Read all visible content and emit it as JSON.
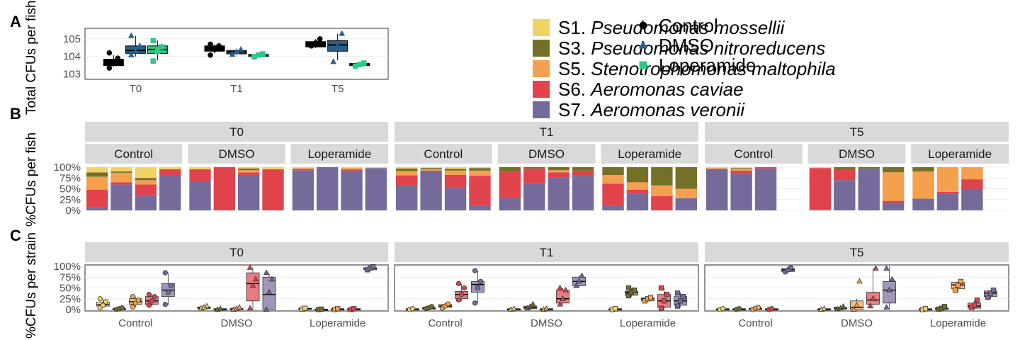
{
  "colors": {
    "S1": "#F0D264",
    "S3": "#747027",
    "S5": "#F4A04E",
    "S6": "#E0434C",
    "S7": "#766A9B",
    "Control": "#000000",
    "DMSO": "#2C5E8C",
    "Loperamide": "#2CC987",
    "strip_bg": "#D9D9D9",
    "grid": "#EBEBEB",
    "panel_border": "#333333"
  },
  "panel_labels": {
    "a": "A",
    "b": "B",
    "c": "C"
  },
  "legend": {
    "strains": [
      {
        "code": "S1.",
        "name": "Pseudomonas mossellii",
        "key": "S1"
      },
      {
        "code": "S3.",
        "name": "Pseudomonas nitroreducens",
        "key": "S3"
      },
      {
        "code": "S5.",
        "name": "Stenotrophomonas maltophila",
        "key": "S5"
      },
      {
        "code": "S6.",
        "name": "Aeromonas caviae",
        "key": "S6"
      },
      {
        "code": "S7.",
        "name": "Aeromonas veronii",
        "key": "S7"
      }
    ],
    "treatments": [
      {
        "label": "Control",
        "shape": "circle"
      },
      {
        "label": "DMSO",
        "shape": "triangle"
      },
      {
        "label": "Loperamide",
        "shape": "square"
      }
    ]
  },
  "chart_data": [
    {
      "id": "A",
      "type": "box",
      "ylabel": "Total CFUs per fish",
      "scale": "log10",
      "yticks": [
        "10^3",
        "10^4",
        "10^5"
      ],
      "categories": [
        "T0",
        "T1",
        "T5"
      ],
      "groups": [
        "Control",
        "DMSO",
        "Loperamide"
      ],
      "series": {
        "T0": {
          "Control": {
            "min": 2500,
            "q1": 3000,
            "median": 5000,
            "q3": 7000,
            "max": 12000,
            "points": [
              2200,
              4500,
              8000,
              16000
            ]
          },
          "DMSO": {
            "min": 10000,
            "q1": 15000,
            "median": 22000,
            "q3": 40000,
            "max": 150000,
            "points": [
              12000,
              20000,
              40000,
              150000
            ]
          },
          "Loperamide": {
            "min": 6000,
            "q1": 15000,
            "median": 25000,
            "q3": 40000,
            "max": 80000,
            "points": [
              5500,
              20000,
              35000,
              80000
            ]
          }
        },
        "T1": {
          "Control": {
            "min": 15000,
            "q1": 20000,
            "median": 30000,
            "q3": 40000,
            "max": 50000,
            "points": [
              12000,
              25000,
              40000,
              50000
            ]
          },
          "DMSO": {
            "min": 12000,
            "q1": 14000,
            "median": 18000,
            "q3": 22000,
            "max": 28000,
            "points": [
              13000,
              18000,
              25000
            ]
          },
          "Loperamide": {
            "min": 9000,
            "q1": 10000,
            "median": 12000,
            "q3": 13000,
            "max": 14000,
            "points": [
              9500,
              12000,
              14000
            ]
          }
        },
        "T5": {
          "Control": {
            "min": 30000,
            "q1": 35000,
            "median": 50000,
            "q3": 70000,
            "max": 100000,
            "points": [
              40000,
              60000,
              100000
            ]
          },
          "DMSO": {
            "min": 6000,
            "q1": 20000,
            "median": 45000,
            "q3": 80000,
            "max": 200000,
            "points": [
              5000,
              40000,
              200000
            ]
          },
          "Loperamide": {
            "min": 2800,
            "q1": 3000,
            "median": 3500,
            "q3": 4000,
            "max": 4500,
            "points": [
              2800,
              3500,
              4200
            ]
          }
        }
      }
    },
    {
      "id": "B",
      "type": "stacked-bar",
      "ylabel": "%CFUs per fish",
      "yticks": [
        "0%",
        "25%",
        "50%",
        "75%",
        "100%"
      ],
      "facets": [
        "T0",
        "T1",
        "T5"
      ],
      "groups": [
        "Control",
        "DMSO",
        "Loperamide"
      ],
      "stack_order_bottom_to_top": [
        "S7",
        "S6",
        "S5",
        "S3",
        "S1"
      ],
      "bars": {
        "T0": {
          "Control": [
            [
              8,
              40,
              30,
              10,
              12
            ],
            [
              60,
              5,
              22,
              3,
              10
            ],
            [
              35,
              25,
              10,
              5,
              25
            ],
            [
              82,
              13,
              0,
              0,
              5
            ]
          ],
          "DMSO": [
            [
              68,
              27,
              0,
              0,
              5
            ],
            [
              0,
              100,
              0,
              0,
              0
            ],
            [
              82,
              6,
              5,
              4,
              3
            ],
            [
              0,
              95,
              0,
              0,
              5
            ]
          ],
          "Loperamide": [
            [
              93,
              3,
              2,
              0,
              2
            ],
            [
              100,
              0,
              0,
              0,
              0
            ],
            [
              92,
              3,
              3,
              0,
              2
            ],
            [
              98,
              0,
              0,
              0,
              2
            ]
          ]
        },
        "T1": {
          "Control": [
            [
              58,
              23,
              10,
              6,
              3
            ],
            [
              92,
              0,
              3,
              3,
              2
            ],
            [
              52,
              30,
              10,
              4,
              4
            ],
            [
              12,
              68,
              12,
              6,
              2
            ]
          ],
          "DMSO": [
            [
              28,
              62,
              0,
              10,
              0
            ],
            [
              62,
              35,
              0,
              3,
              0
            ],
            [
              76,
              12,
              5,
              7,
              0
            ],
            [
              80,
              12,
              0,
              8,
              0
            ]
          ],
          "Loperamide": [
            [
              12,
              50,
              20,
              18,
              0
            ],
            [
              38,
              10,
              17,
              35,
              0
            ],
            [
              0,
              33,
              25,
              42,
              0
            ],
            [
              28,
              0,
              22,
              50,
              0
            ]
          ]
        },
        "T5": {
          "Control": [
            [
              96,
              0,
              2,
              0,
              2
            ],
            [
              85,
              7,
              4,
              2,
              2
            ],
            [
              97,
              3,
              0,
              0,
              0
            ]
          ],
          "DMSO": [
            [
              3,
              95,
              0,
              0,
              2
            ],
            [
              70,
              25,
              0,
              5,
              0
            ],
            [
              97,
              0,
              0,
              3,
              0
            ],
            [
              18,
              4,
              66,
              12,
              0
            ]
          ],
          "Loperamide": [
            [
              27,
              0,
              63,
              10,
              0
            ],
            [
              38,
              5,
              57,
              0,
              0
            ],
            [
              50,
              22,
              28,
              0,
              0
            ]
          ]
        }
      }
    },
    {
      "id": "C",
      "type": "box",
      "ylabel": "%CFUs per strain",
      "yticks": [
        "0%",
        "25%",
        "50%",
        "75%",
        "100%"
      ],
      "facets": [
        "T0",
        "T1",
        "T5"
      ],
      "groups": [
        "Control",
        "DMSO",
        "Loperamide"
      ],
      "strain_order": [
        "S1",
        "S3",
        "S5",
        "S6",
        "S7"
      ],
      "series": {
        "T0": {
          "Control": [
            [
              5,
              8,
              11,
              17,
              25,
              [
                4,
                10,
                18,
                25
              ]
            ],
            [
              0,
              0,
              1,
              3,
              5,
              [
                0,
                2,
                4
              ]
            ],
            [
              5,
              12,
              18,
              25,
              30,
              [
                6,
                15,
                22,
                30
              ]
            ],
            [
              8,
              12,
              20,
              30,
              35,
              [
                10,
                20,
                30,
                35
              ]
            ],
            [
              10,
              30,
              45,
              60,
              85,
              [
                12,
                40,
                55,
                85
              ]
            ]
          ],
          "DMSO": [
            [
              0,
              2,
              4,
              6,
              8,
              [
                3,
                5,
                8
              ]
            ],
            [
              0,
              0,
              1,
              2,
              3,
              [
                0,
                2
              ]
            ],
            [
              0,
              0,
              1,
              3,
              5,
              [
                0,
                2,
                5
              ]
            ],
            [
              0,
              20,
              60,
              85,
              97,
              [
                3,
                55,
                70,
                97
              ]
            ],
            [
              0,
              0,
              35,
              75,
              85,
              [
                0,
                40,
                70,
                85
              ]
            ]
          ],
          "Loperamide": [
            [
              0,
              1,
              2,
              3,
              5,
              [
                1,
                3
              ]
            ],
            [
              0,
              0,
              0,
              1,
              2,
              [
                0,
                1
              ]
            ],
            [
              0,
              0,
              1,
              2,
              3,
              [
                0,
                2
              ]
            ],
            [
              0,
              0,
              1,
              2,
              3,
              [
                0,
                2
              ]
            ],
            [
              90,
              92,
              95,
              97,
              100,
              [
                92,
                96,
                99
              ]
            ]
          ]
        },
        "T1": {
          "Control": [
            [
              0,
              0,
              1,
              2,
              3,
              [
                0,
                2
              ]
            ],
            [
              0,
              1,
              3,
              5,
              8,
              [
                2,
                4,
                7
              ]
            ],
            [
              2,
              5,
              8,
              12,
              15,
              [
                3,
                8,
                13
              ]
            ],
            [
              20,
              25,
              35,
              42,
              60,
              [
                22,
                35,
                50,
                60
              ]
            ],
            [
              15,
              40,
              58,
              65,
              90,
              [
                15,
                50,
                65,
                90
              ]
            ]
          ],
          "DMSO": [
            [
              0,
              0,
              1,
              2,
              3,
              [
                0,
                2
              ]
            ],
            [
              0,
              2,
              5,
              8,
              12,
              [
                3,
                7,
                12
              ]
            ],
            [
              0,
              0,
              1,
              2,
              3,
              [
                0,
                2
              ]
            ],
            [
              10,
              15,
              25,
              45,
              50,
              [
                12,
                25,
                45,
                50
              ]
            ],
            [
              50,
              55,
              65,
              75,
              80,
              [
                55,
                65,
                78
              ]
            ]
          ],
          "Loperamide": [
            [
              0,
              0,
              1,
              2,
              3,
              [
                0,
                2
              ]
            ],
            [
              30,
              33,
              40,
              42,
              50,
              [
                32,
                40,
                45,
                50
              ]
            ],
            [
              18,
              20,
              25,
              27,
              30,
              [
                20,
                25,
                28
              ]
            ],
            [
              0,
              5,
              20,
              35,
              50,
              [
                3,
                20,
                35,
                50
              ]
            ],
            [
              5,
              10,
              20,
              30,
              40,
              [
                8,
                20,
                30,
                38
              ]
            ]
          ]
        },
        "T5": {
          "Control": [
            [
              0,
              0,
              1,
              2,
              3,
              [
                0,
                2
              ]
            ],
            [
              0,
              0,
              1,
              2,
              3,
              [
                0,
                2
              ]
            ],
            [
              0,
              0,
              2,
              3,
              5,
              [
                0,
                3,
                5
              ]
            ],
            [
              0,
              0,
              1,
              2,
              3,
              [
                0,
                2
              ]
            ],
            [
              85,
              88,
              92,
              95,
              100,
              [
                87,
                92,
                97
              ]
            ]
          ],
          "DMSO": [
            [
              0,
              0,
              1,
              2,
              3,
              [
                0,
                2
              ]
            ],
            [
              0,
              1,
              3,
              5,
              8,
              [
                1,
                3,
                7
              ]
            ],
            [
              0,
              0,
              5,
              20,
              25,
              [
                0,
                10,
                65
              ]
            ],
            [
              5,
              12,
              22,
              40,
              95,
              [
                8,
                25,
                95
              ]
            ],
            [
              0,
              15,
              45,
              65,
              100,
              [
                5,
                45,
                70,
                95
              ]
            ]
          ],
          "Loperamide": [
            [
              0,
              0,
              1,
              2,
              3,
              [
                0,
                2
              ]
            ],
            [
              0,
              0,
              2,
              4,
              8,
              [
                1,
                3,
                7
              ]
            ],
            [
              40,
              48,
              57,
              63,
              65,
              [
                45,
                57,
                65
              ]
            ],
            [
              0,
              3,
              8,
              15,
              22,
              [
                5,
                10,
                22
              ]
            ],
            [
              25,
              30,
              38,
              43,
              45,
              [
                28,
                38,
                45
              ]
            ]
          ]
        }
      }
    }
  ]
}
